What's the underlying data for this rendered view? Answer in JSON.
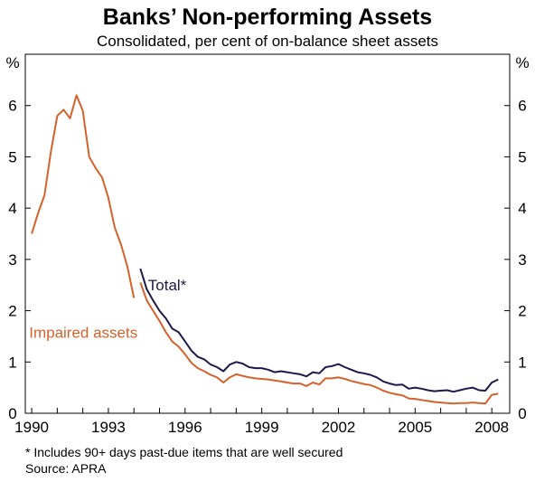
{
  "title": "Banks’ Non-performing Assets",
  "subtitle": "Consolidated, per cent of on-balance sheet assets",
  "footnote": "*   Includes 90+ days past-due items that are well secured",
  "source": "Source: APRA",
  "chart_data": {
    "type": "line",
    "title": "Banks’ Non-performing Assets",
    "subtitle": "Consolidated, per cent of on-balance sheet assets",
    "y_unit_left": "%",
    "y_unit_right": "%",
    "ylim": [
      0,
      7
    ],
    "yticks": [
      0,
      1,
      2,
      3,
      4,
      5,
      6
    ],
    "xlim": [
      1989.75,
      2008.7
    ],
    "xticks": [
      1990,
      1993,
      1996,
      1999,
      2002,
      2005,
      2008
    ],
    "xtick_labels": [
      "1990",
      "1993",
      "1996",
      "1999",
      "2002",
      "2005",
      "2008"
    ],
    "grid": false,
    "series": [
      {
        "name": "Impaired assets",
        "color": "#d4622a",
        "segments": [
          [
            [
              1990.0,
              3.5
            ],
            [
              1990.25,
              3.9
            ],
            [
              1990.5,
              4.25
            ],
            [
              1990.75,
              5.1
            ],
            [
              1991.0,
              5.8
            ],
            [
              1991.25,
              5.92
            ],
            [
              1991.5,
              5.75
            ],
            [
              1991.75,
              6.2
            ],
            [
              1992.0,
              5.9
            ],
            [
              1992.25,
              5.0
            ],
            [
              1992.5,
              4.78
            ],
            [
              1992.75,
              4.6
            ],
            [
              1993.0,
              4.2
            ],
            [
              1993.25,
              3.62
            ],
            [
              1993.5,
              3.28
            ],
            [
              1993.75,
              2.85
            ],
            [
              1994.0,
              2.25
            ]
          ],
          [
            [
              1994.25,
              2.55
            ],
            [
              1994.5,
              2.2
            ],
            [
              1994.75,
              2.0
            ],
            [
              1995.0,
              1.8
            ],
            [
              1995.25,
              1.58
            ],
            [
              1995.5,
              1.4
            ],
            [
              1995.75,
              1.3
            ],
            [
              1996.0,
              1.15
            ],
            [
              1996.25,
              0.98
            ],
            [
              1996.5,
              0.88
            ],
            [
              1996.75,
              0.82
            ],
            [
              1997.0,
              0.75
            ],
            [
              1997.25,
              0.7
            ],
            [
              1997.5,
              0.6
            ],
            [
              1997.75,
              0.7
            ],
            [
              1998.0,
              0.76
            ],
            [
              1998.25,
              0.73
            ],
            [
              1998.5,
              0.7
            ],
            [
              1998.75,
              0.68
            ],
            [
              1999.0,
              0.67
            ],
            [
              1999.25,
              0.66
            ],
            [
              1999.5,
              0.64
            ],
            [
              1999.75,
              0.62
            ],
            [
              2000.0,
              0.6
            ],
            [
              2000.25,
              0.58
            ],
            [
              2000.5,
              0.58
            ],
            [
              2000.75,
              0.53
            ],
            [
              2001.0,
              0.6
            ],
            [
              2001.25,
              0.56
            ],
            [
              2001.5,
              0.68
            ],
            [
              2001.75,
              0.68
            ],
            [
              2002.0,
              0.7
            ],
            [
              2002.25,
              0.67
            ],
            [
              2002.5,
              0.63
            ],
            [
              2002.75,
              0.6
            ],
            [
              2003.0,
              0.57
            ],
            [
              2003.25,
              0.55
            ],
            [
              2003.5,
              0.5
            ],
            [
              2003.75,
              0.44
            ],
            [
              2004.0,
              0.4
            ],
            [
              2004.25,
              0.37
            ],
            [
              2004.5,
              0.35
            ],
            [
              2004.75,
              0.29
            ],
            [
              2005.0,
              0.28
            ],
            [
              2005.25,
              0.26
            ],
            [
              2005.5,
              0.24
            ],
            [
              2005.75,
              0.22
            ],
            [
              2006.0,
              0.21
            ],
            [
              2006.25,
              0.2
            ],
            [
              2006.5,
              0.19
            ],
            [
              2006.75,
              0.2
            ],
            [
              2007.0,
              0.2
            ],
            [
              2007.25,
              0.21
            ],
            [
              2007.5,
              0.2
            ],
            [
              2007.75,
              0.19
            ],
            [
              2008.0,
              0.36
            ],
            [
              2008.25,
              0.38
            ]
          ]
        ]
      },
      {
        "name": "Total*",
        "color": "#1c1a4a",
        "segments": [
          [
            [
              1994.25,
              2.82
            ],
            [
              1994.5,
              2.42
            ],
            [
              1994.75,
              2.2
            ],
            [
              1995.0,
              2.0
            ],
            [
              1995.25,
              1.85
            ],
            [
              1995.5,
              1.65
            ],
            [
              1995.75,
              1.58
            ],
            [
              1996.0,
              1.4
            ],
            [
              1996.25,
              1.22
            ],
            [
              1996.5,
              1.1
            ],
            [
              1996.75,
              1.05
            ],
            [
              1997.0,
              0.95
            ],
            [
              1997.25,
              0.9
            ],
            [
              1997.5,
              0.82
            ],
            [
              1997.75,
              0.95
            ],
            [
              1998.0,
              1.0
            ],
            [
              1998.25,
              0.97
            ],
            [
              1998.5,
              0.9
            ],
            [
              1998.75,
              0.88
            ],
            [
              1999.0,
              0.88
            ],
            [
              1999.25,
              0.85
            ],
            [
              1999.5,
              0.8
            ],
            [
              1999.75,
              0.82
            ],
            [
              2000.0,
              0.8
            ],
            [
              2000.25,
              0.78
            ],
            [
              2000.5,
              0.76
            ],
            [
              2000.75,
              0.72
            ],
            [
              2001.0,
              0.8
            ],
            [
              2001.25,
              0.78
            ],
            [
              2001.5,
              0.9
            ],
            [
              2001.75,
              0.92
            ],
            [
              2002.0,
              0.96
            ],
            [
              2002.25,
              0.9
            ],
            [
              2002.5,
              0.85
            ],
            [
              2002.75,
              0.8
            ],
            [
              2003.0,
              0.78
            ],
            [
              2003.25,
              0.75
            ],
            [
              2003.5,
              0.7
            ],
            [
              2003.75,
              0.62
            ],
            [
              2004.0,
              0.58
            ],
            [
              2004.25,
              0.55
            ],
            [
              2004.5,
              0.56
            ],
            [
              2004.75,
              0.48
            ],
            [
              2005.0,
              0.5
            ],
            [
              2005.25,
              0.48
            ],
            [
              2005.5,
              0.45
            ],
            [
              2005.75,
              0.43
            ],
            [
              2006.0,
              0.44
            ],
            [
              2006.25,
              0.45
            ],
            [
              2006.5,
              0.42
            ],
            [
              2006.75,
              0.45
            ],
            [
              2007.0,
              0.48
            ],
            [
              2007.25,
              0.5
            ],
            [
              2007.5,
              0.45
            ],
            [
              2007.75,
              0.44
            ],
            [
              2008.0,
              0.6
            ],
            [
              2008.25,
              0.66
            ]
          ]
        ]
      }
    ],
    "annotations": [
      {
        "text": "Total*",
        "color": "#1c1a4a",
        "x": 1994.55,
        "y": 2.4
      },
      {
        "text": "Impaired assets",
        "color": "#d4622a",
        "x": 1989.9,
        "y": 1.47
      }
    ]
  }
}
